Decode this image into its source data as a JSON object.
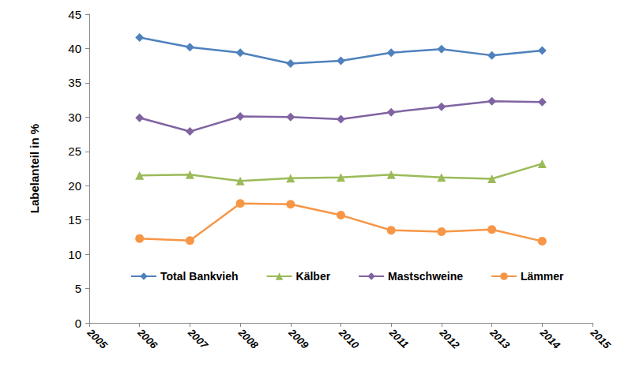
{
  "chart_data": {
    "type": "line",
    "y_label": "Labelanteil in %",
    "x": [
      2006,
      2007,
      2008,
      2009,
      2010,
      2011,
      2012,
      2013,
      2014
    ],
    "xlim": [
      2005,
      2015
    ],
    "xticks": [
      2005,
      2006,
      2007,
      2008,
      2009,
      2010,
      2011,
      2012,
      2013,
      2014,
      2015
    ],
    "ylim": [
      0,
      45
    ],
    "yticks": [
      0,
      5,
      10,
      15,
      20,
      25,
      30,
      35,
      40,
      45
    ],
    "grid": false,
    "legend": "bottom",
    "series": [
      {
        "name": "Total Bankvieh",
        "color": "#4f81bd",
        "marker": "diamond",
        "line_style": "solid",
        "values": [
          41.6,
          40.2,
          39.4,
          37.8,
          38.2,
          39.4,
          39.9,
          39.0,
          39.7
        ]
      },
      {
        "name": "Kälber",
        "color": "#9bbb59",
        "marker": "triangle",
        "line_style": "solid",
        "values": [
          21.5,
          21.6,
          20.7,
          21.1,
          21.2,
          21.6,
          21.2,
          21.0,
          23.2
        ]
      },
      {
        "name": "Mastschweine",
        "color": "#8064a2",
        "marker": "diamond",
        "line_style": "solid",
        "values": [
          29.9,
          27.9,
          30.1,
          30.0,
          29.7,
          30.7,
          31.5,
          32.3,
          32.2
        ]
      },
      {
        "name": "Lämmer",
        "color": "#f79646",
        "marker": "circle",
        "line_style": "solid",
        "values": [
          12.3,
          12.0,
          17.4,
          17.3,
          15.7,
          13.5,
          13.3,
          13.6,
          11.9
        ]
      }
    ]
  }
}
